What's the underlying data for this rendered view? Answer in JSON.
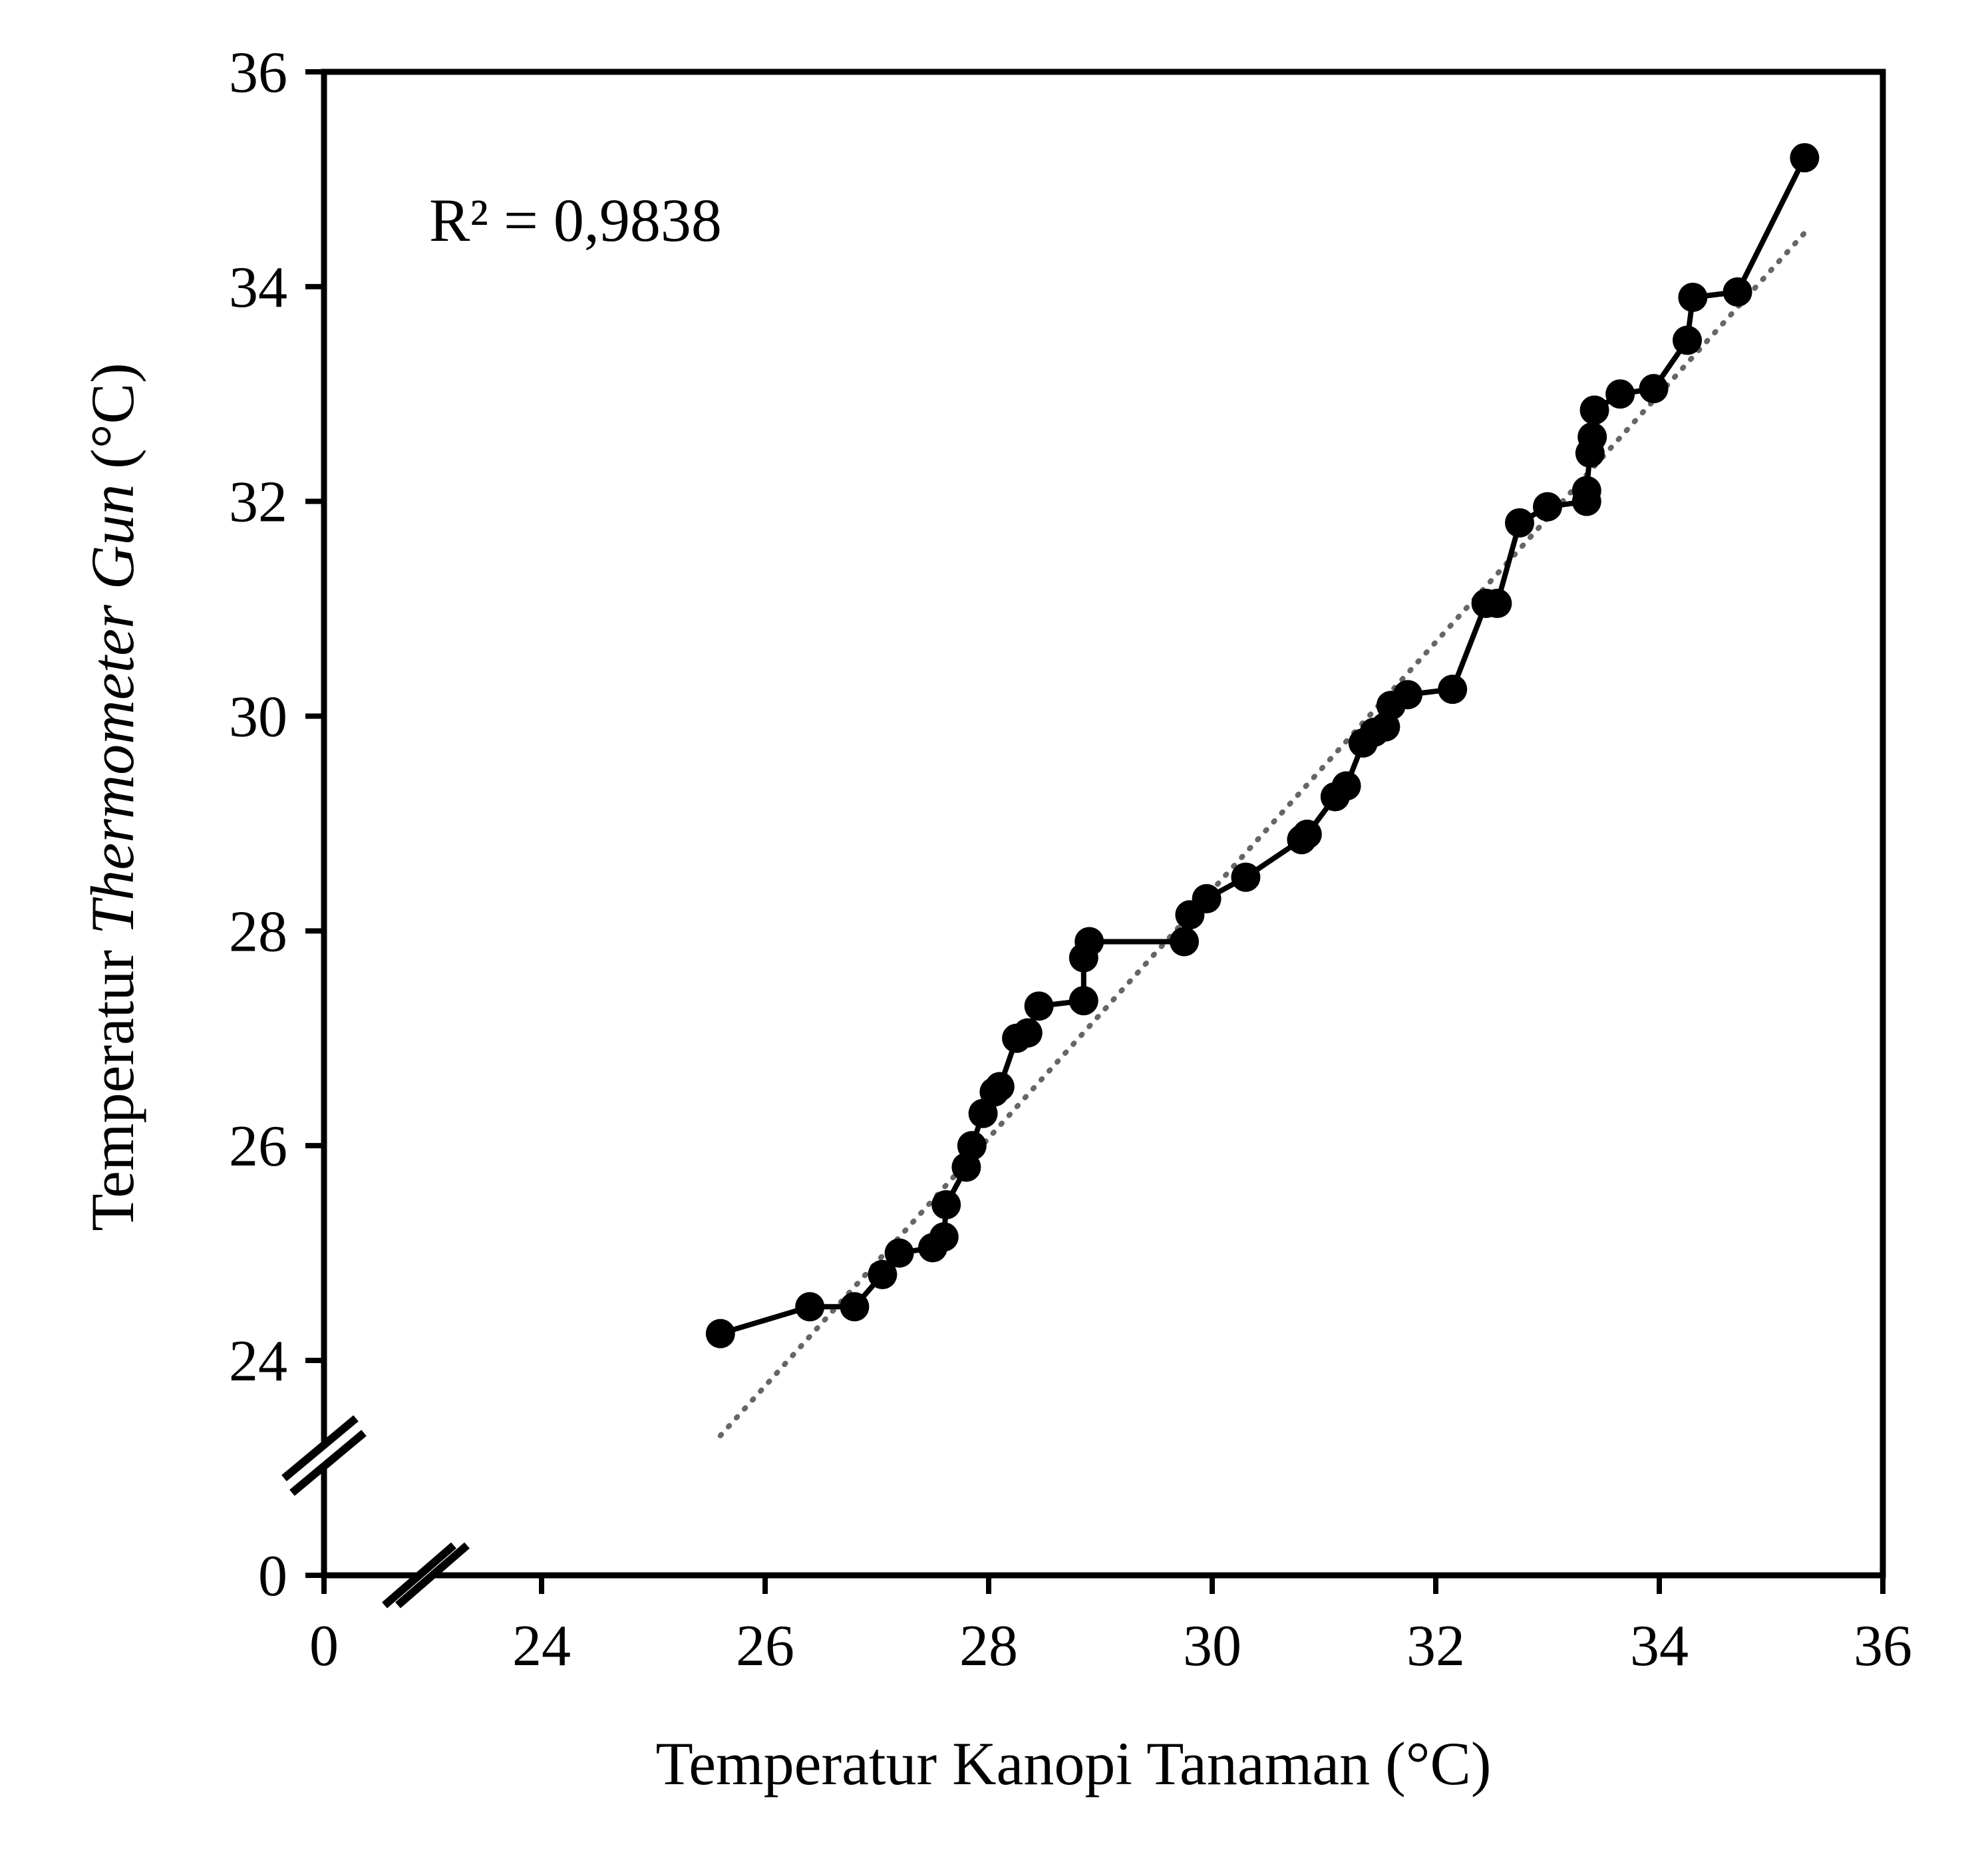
{
  "chart_data": {
    "type": "scatter",
    "xlabel": "Temperatur Kanopi Tanaman (°C)",
    "ylabel_prefix": "Temperatur ",
    "ylabel_italic": "Thermometer Gun",
    "ylabel_suffix": " (°C)",
    "annotation": "R² = 0,9838",
    "axis_break": true,
    "xlim": [
      24,
      36
    ],
    "ylim": [
      24,
      36
    ],
    "x_ticks": [
      "0",
      "24",
      "26",
      "28",
      "30",
      "32",
      "34",
      "36"
    ],
    "y_ticks": [
      "0",
      "24",
      "26",
      "28",
      "30",
      "32",
      "34",
      "36"
    ],
    "grid": false,
    "colors": {
      "series": "#000000",
      "trendline": "#666666"
    },
    "series": [
      {
        "style": "line-with-markers",
        "points": [
          [
            25.6,
            24.25
          ],
          [
            26.4,
            24.5
          ],
          [
            26.8,
            24.5
          ],
          [
            27.05,
            24.8
          ],
          [
            27.2,
            25.0
          ],
          [
            27.5,
            25.05
          ],
          [
            27.6,
            25.15
          ],
          [
            27.62,
            25.45
          ],
          [
            27.8,
            25.8
          ],
          [
            27.85,
            26.0
          ],
          [
            27.95,
            26.3
          ],
          [
            28.05,
            26.5
          ],
          [
            28.1,
            26.55
          ],
          [
            28.25,
            27.0
          ],
          [
            28.35,
            27.05
          ],
          [
            28.45,
            27.3
          ],
          [
            28.85,
            27.35
          ],
          [
            28.85,
            27.75
          ],
          [
            28.9,
            27.9
          ],
          [
            29.75,
            27.9
          ],
          [
            29.8,
            28.15
          ],
          [
            29.95,
            28.3
          ],
          [
            30.3,
            28.5
          ],
          [
            30.8,
            28.85
          ],
          [
            30.85,
            28.9
          ],
          [
            31.1,
            29.25
          ],
          [
            31.2,
            29.35
          ],
          [
            31.35,
            29.75
          ],
          [
            31.45,
            29.85
          ],
          [
            31.55,
            29.9
          ],
          [
            31.6,
            30.1
          ],
          [
            31.75,
            30.2
          ],
          [
            32.15,
            30.25
          ],
          [
            32.45,
            31.05
          ],
          [
            32.55,
            31.05
          ],
          [
            32.75,
            31.8
          ],
          [
            33.0,
            31.95
          ],
          [
            33.35,
            32.0
          ],
          [
            33.35,
            32.1
          ],
          [
            33.38,
            32.45
          ],
          [
            33.4,
            32.6
          ],
          [
            33.42,
            32.85
          ],
          [
            33.65,
            33.0
          ],
          [
            33.95,
            33.05
          ],
          [
            34.25,
            33.5
          ],
          [
            34.3,
            33.9
          ],
          [
            34.7,
            33.95
          ],
          [
            35.3,
            35.2
          ]
        ]
      }
    ],
    "trendline": {
      "style": "dotted",
      "x": [
        25.6,
        35.3
      ],
      "y": [
        23.3,
        34.5
      ]
    }
  }
}
